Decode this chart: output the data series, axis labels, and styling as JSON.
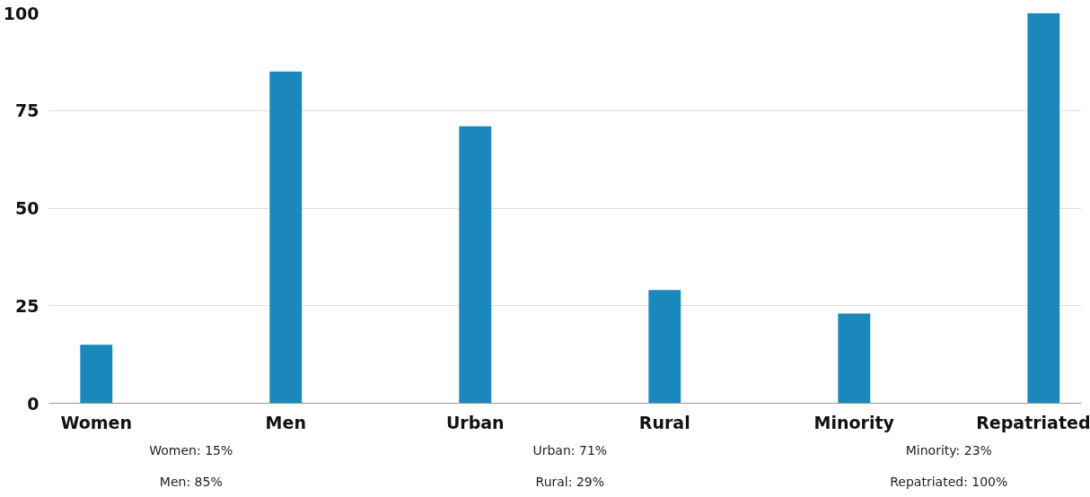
{
  "chart_data": {
    "type": "bar",
    "categories": [
      "Women",
      "Men",
      "Urban",
      "Rural",
      "Minority",
      "Repatriated"
    ],
    "values": [
      15,
      85,
      71,
      29,
      23,
      100
    ],
    "color": "#1a88bb",
    "ylim": [
      0,
      100
    ],
    "yticks": [
      0,
      25,
      50,
      75,
      100
    ],
    "grid": "y",
    "annotations": [
      "Women: 15%",
      "Men: 85%",
      "Urban: 71%",
      "Rural: 29%",
      "Minority: 23%",
      "Repatriated: 100%"
    ]
  }
}
